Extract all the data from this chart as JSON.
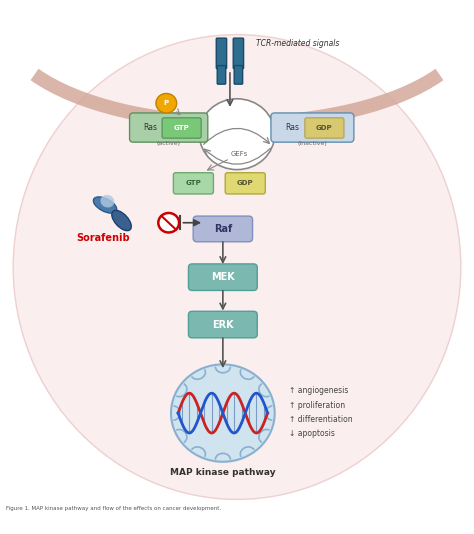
{
  "title": "",
  "fig_width": 4.74,
  "fig_height": 5.34,
  "dpi": 100,
  "bg_color": "#ffffff",
  "cell_membrane_color": "#d4a89a",
  "cell_body_color": "#f9e8e8",
  "tcr_color": "#2d6e8e",
  "tcr_label": "TCR-mediated signals",
  "ras_gtp_bg": "#a8cfa8",
  "ras_gdp_bg": "#c8d8e8",
  "gtp_box_color": "#a8cfa8",
  "gdp_box_color": "#e0d898",
  "raf_box_color": "#b0b8d8",
  "mek_box_color": "#7ab8b0",
  "erk_box_color": "#7ab8b0",
  "p_circle_color": "#f0a800",
  "inhibit_color": "#cc0000",
  "sorafenib_color": "#cc0000",
  "arrow_color": "#555555",
  "label_color": "#555555",
  "map_kinase_label": "MAP kinase pathway",
  "effects": [
    "↑ angiogenesis",
    "↑ proliferation",
    "↑ differentiation",
    "↓ apoptosis"
  ],
  "nucleus_color": "#b8d0e8",
  "nucleus_outline": "#8ab0d0"
}
